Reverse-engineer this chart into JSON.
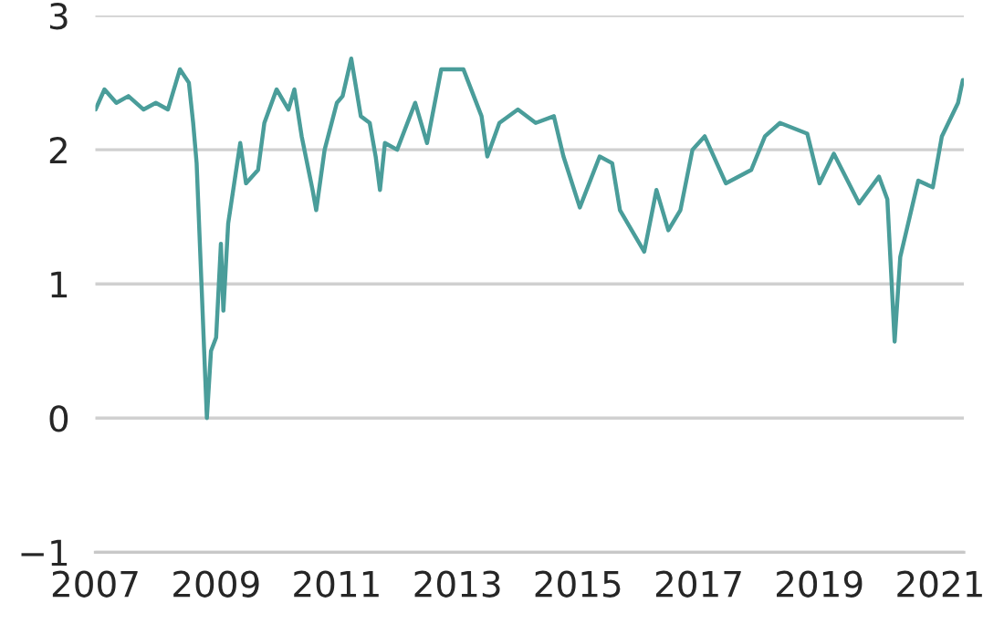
{
  "chart_data": {
    "type": "line",
    "color": "#4a9d9a",
    "grid": "y",
    "xlim": [
      "2007-01-01",
      "2021-05-25"
    ],
    "xticks": [
      "2007",
      "2009",
      "2011",
      "2013",
      "2015",
      "2017",
      "2019",
      "2021"
    ],
    "ylim": [
      -1,
      3
    ],
    "yticks": [
      {
        "value": -1,
        "label": "−1"
      },
      0,
      1,
      2,
      3
    ],
    "x": [
      "2007-01-02",
      "2007-02-25",
      "2007-05-08",
      "2007-07-20",
      "2007-10-20",
      "2008-01-02",
      "2008-03-15",
      "2008-05-27",
      "2008-07-20",
      "2008-08-15",
      "2008-09-05",
      "2008-10-05",
      "2008-11-06",
      "2008-12-01",
      "2009-01-01",
      "2009-01-30",
      "2009-02-14",
      "2009-03-15",
      "2009-05-27",
      "2009-07-01",
      "2009-09-12",
      "2009-10-20",
      "2010-01-02",
      "2010-03-15",
      "2010-04-20",
      "2010-06-03",
      "2010-08-08",
      "2010-08-30",
      "2010-10-20",
      "2011-01-02",
      "2011-02-06",
      "2011-03-30",
      "2011-05-27",
      "2011-07-20",
      "2011-08-25",
      "2011-09-20",
      "2011-10-20",
      "2012-01-02",
      "2012-04-20",
      "2012-07-01",
      "2012-09-25",
      "2013-02-06",
      "2013-05-27",
      "2013-07-01",
      "2013-09-12",
      "2014-01-02",
      "2014-04-20",
      "2014-08-08",
      "2014-10-05",
      "2015-01-12",
      "2015-05-12",
      "2015-07-27",
      "2015-09-12",
      "2016-02-06",
      "2016-04-20",
      "2016-07-01",
      "2016-09-12",
      "2016-11-24",
      "2017-02-06",
      "2017-06-14",
      "2017-11-15",
      "2018-02-06",
      "2018-05-08",
      "2018-10-20",
      "2019-01-02",
      "2019-03-30",
      "2019-08-30",
      "2019-12-28",
      "2020-02-17",
      "2020-04-01",
      "2020-05-05",
      "2020-08-22",
      "2020-11-18",
      "2021-01-12",
      "2021-04-20",
      "2021-05-19"
    ],
    "values": [
      2.3,
      2.45,
      2.35,
      2.4,
      2.3,
      2.35,
      2.3,
      2.6,
      2.5,
      2.2,
      1.9,
      0.98,
      0.0,
      0.5,
      0.6,
      1.3,
      0.8,
      1.45,
      2.05,
      1.75,
      1.85,
      2.2,
      2.45,
      2.3,
      2.45,
      2.1,
      1.7,
      1.55,
      2.0,
      2.35,
      2.4,
      2.68,
      2.25,
      2.2,
      1.95,
      1.7,
      2.05,
      2.0,
      2.35,
      2.05,
      2.6,
      2.6,
      2.25,
      1.95,
      2.2,
      2.3,
      2.2,
      2.25,
      1.95,
      1.57,
      1.95,
      1.9,
      1.55,
      1.24,
      1.7,
      1.4,
      1.55,
      2.0,
      2.1,
      1.75,
      1.85,
      2.1,
      2.2,
      2.12,
      1.75,
      1.97,
      1.6,
      1.8,
      1.63,
      0.57,
      1.2,
      1.77,
      1.72,
      2.1,
      2.35,
      2.52
    ]
  }
}
